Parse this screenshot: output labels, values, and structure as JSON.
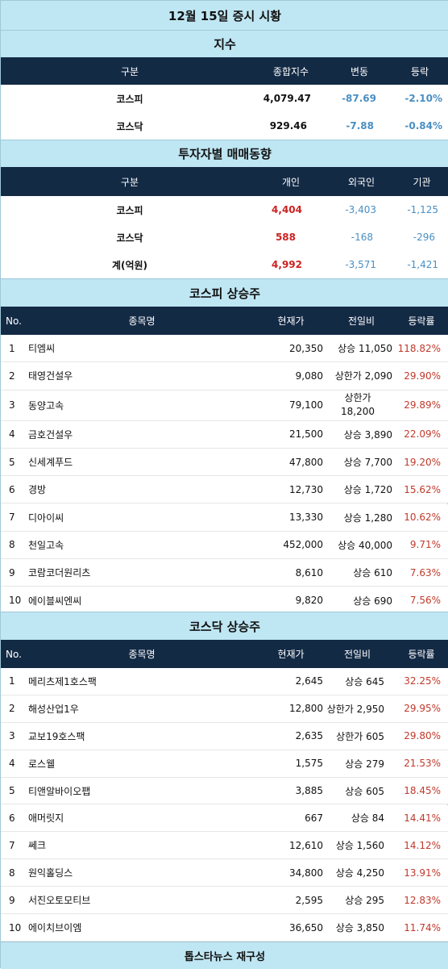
{
  "main_title": "12월 15일 증시 시황",
  "index": {
    "title": "지수",
    "headers": [
      "구분",
      "종합지수",
      "변동",
      "등락"
    ],
    "rows": [
      [
        "코스피",
        "4,079.47",
        "-87.69",
        "-2.10%"
      ],
      [
        "코스닥",
        "929.46",
        "-7.88",
        "-0.84%"
      ]
    ]
  },
  "investors": {
    "title": "투자자별 매매동향",
    "headers": [
      "구분",
      "개인",
      "외국인",
      "기관"
    ],
    "rows": [
      [
        "코스피",
        "4,404",
        "-3,403",
        "-1,125"
      ],
      [
        "코스닥",
        "588",
        "-168",
        "-296"
      ],
      [
        "계(억원)",
        "4,992",
        "-3,571",
        "-1,421"
      ]
    ]
  },
  "kospi_gainers": {
    "title": "코스피 상승주",
    "headers": [
      "No.",
      "종목명",
      "현재가",
      "전일비",
      "등락률"
    ],
    "rows": [
      [
        "1",
        "티엠씨",
        "20,350",
        "상승 11,050",
        "118.82%"
      ],
      [
        "2",
        "태영건설우",
        "9,080",
        "상한가 2,090",
        "29.90%"
      ],
      [
        "3",
        "동양고속",
        "79,100",
        "상한가",
        "29.89%"
      ],
      [
        "4",
        "금호건설우",
        "21,500",
        "상승 3,890",
        "22.09%"
      ],
      [
        "5",
        "신세계푸드",
        "47,800",
        "상승 7,700",
        "19.20%"
      ],
      [
        "6",
        "경방",
        "12,730",
        "상승 1,720",
        "15.62%"
      ],
      [
        "7",
        "디아이씨",
        "13,330",
        "상승 1,280",
        "10.62%"
      ],
      [
        "8",
        "천일고속",
        "452,000",
        "상승 40,000",
        "9.71%"
      ],
      [
        "9",
        "코람코더원리츠",
        "8,610",
        "상승 610",
        "7.63%"
      ],
      [
        "10",
        "에이블씨엔씨",
        "9,820",
        "상승 690",
        "7.56%"
      ]
    ],
    "row3_change_line2": "18,200"
  },
  "kosdaq_gainers": {
    "title": "코스닥 상승주",
    "headers": [
      "No.",
      "종목명",
      "현재가",
      "전일비",
      "등락률"
    ],
    "rows": [
      [
        "1",
        "메리츠제1호스팩",
        "2,645",
        "상승 645",
        "32.25%"
      ],
      [
        "2",
        "해성산업1우",
        "12,800",
        "상한가 2,950",
        "29.95%"
      ],
      [
        "3",
        "교보19호스팩",
        "2,635",
        "상한가 605",
        "29.80%"
      ],
      [
        "4",
        "로스웰",
        "1,575",
        "상승 279",
        "21.53%"
      ],
      [
        "5",
        "티앤알바이오팹",
        "3,885",
        "상승 605",
        "18.45%"
      ],
      [
        "6",
        "애머릿지",
        "667",
        "상승 84",
        "14.41%"
      ],
      [
        "7",
        "쎄크",
        "12,610",
        "상승 1,560",
        "14.12%"
      ],
      [
        "8",
        "원익홀딩스",
        "34,800",
        "상승 4,250",
        "13.91%"
      ],
      [
        "9",
        "서진오토모티브",
        "2,595",
        "상승 295",
        "12.83%"
      ],
      [
        "10",
        "에이치브이엠",
        "36,650",
        "상승 3,850",
        "11.74%"
      ]
    ]
  },
  "footer": "톱스타뉴스 재구성",
  "colors": {
    "header_bg": "#132a45",
    "section_bg": "#bfe6f3",
    "negative": "#4a8fc3",
    "positive_bold": "#cc2222",
    "rate": "#c0392b"
  }
}
